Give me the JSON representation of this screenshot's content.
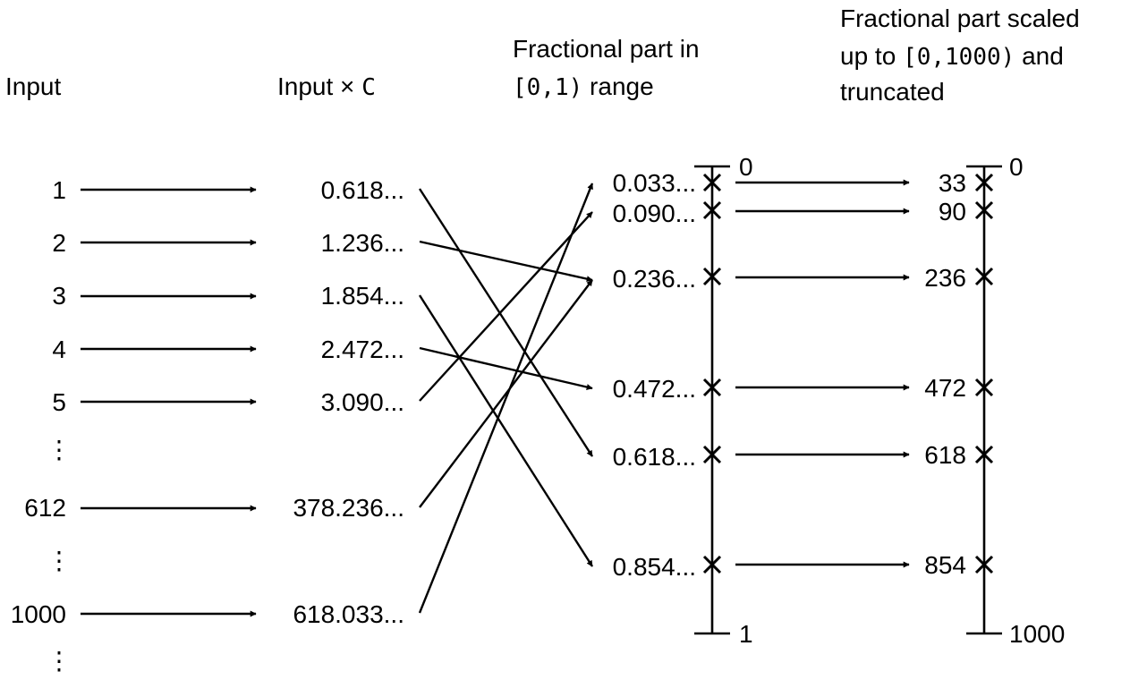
{
  "headers": {
    "input": "Input",
    "product_prefix": "Input × ",
    "product_const": "C",
    "fraction_line1": "Fractional part in",
    "fraction_range": "[0,1)",
    "fraction_suffix": " range",
    "scaled_line1": "Fractional part scaled",
    "scaled_prefix": "up to ",
    "scaled_range": "[0,1000)",
    "scaled_suffix": " and",
    "scaled_line3": "truncated"
  },
  "ellipsis": "⋮",
  "rows": [
    {
      "input": "1",
      "product": "0.618...",
      "target": 4
    },
    {
      "input": "2",
      "product": "1.236...",
      "target": 2
    },
    {
      "input": "3",
      "product": "1.854...",
      "target": 5
    },
    {
      "input": "4",
      "product": "2.472...",
      "target": 3
    },
    {
      "input": "5",
      "product": "3.090...",
      "target": 1
    },
    {
      "input": "612",
      "product": "378.236...",
      "target": 2
    },
    {
      "input": "1000",
      "product": "618.033...",
      "target": 0
    }
  ],
  "fractions": [
    {
      "label": "0.033...",
      "value": 0.033
    },
    {
      "label": "0.090...",
      "value": 0.09
    },
    {
      "label": "0.236...",
      "value": 0.236
    },
    {
      "label": "0.472...",
      "value": 0.472
    },
    {
      "label": "0.618...",
      "value": 0.618
    },
    {
      "label": "0.854...",
      "value": 0.854
    }
  ],
  "scaled": [
    "33",
    "90",
    "236",
    "472",
    "618",
    "854"
  ],
  "axis1": {
    "min_label": "0",
    "max_label": "1"
  },
  "axis2": {
    "min_label": "0",
    "max_label": "1000"
  }
}
